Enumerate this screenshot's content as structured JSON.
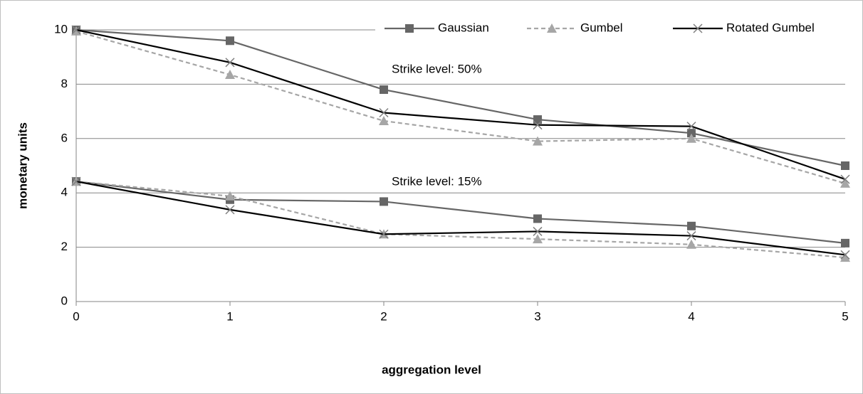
{
  "chart_data": {
    "type": "line",
    "x_label": "aggregation level",
    "y_label": "monetary units",
    "annotations": [
      "Strike level: 50%",
      "Strike level: 15%"
    ],
    "x": [
      0,
      1,
      2,
      3,
      4,
      5
    ],
    "xlim": [
      0,
      5
    ],
    "xticks": [
      0,
      1,
      2,
      3,
      4,
      5
    ],
    "ylim": [
      0,
      10
    ],
    "yticks": [
      0,
      2,
      4,
      6,
      8,
      10
    ],
    "grid": true,
    "legend": "top-right",
    "series": [
      {
        "name": "Gaussian",
        "color": "#666666",
        "marker": "square",
        "dash": false,
        "values": [
          [
            10,
            9.6,
            7.8,
            6.7,
            6.2,
            5.0
          ],
          [
            4.42,
            3.75,
            3.68,
            3.05,
            2.78,
            2.15
          ]
        ]
      },
      {
        "name": "Gumbel",
        "color": "#a6a6a6",
        "marker": "triangle",
        "dash": true,
        "values": [
          [
            9.95,
            8.35,
            6.65,
            5.9,
            6.0,
            4.35
          ],
          [
            4.42,
            3.88,
            2.48,
            2.3,
            2.1,
            1.62
          ]
        ]
      },
      {
        "name": "Rotated Gumbel",
        "color": "#000000",
        "marker": "x",
        "dash": false,
        "values": [
          [
            10,
            8.8,
            6.95,
            6.5,
            6.45,
            4.5
          ],
          [
            4.42,
            3.38,
            2.48,
            2.58,
            2.42,
            1.72
          ]
        ]
      }
    ]
  }
}
